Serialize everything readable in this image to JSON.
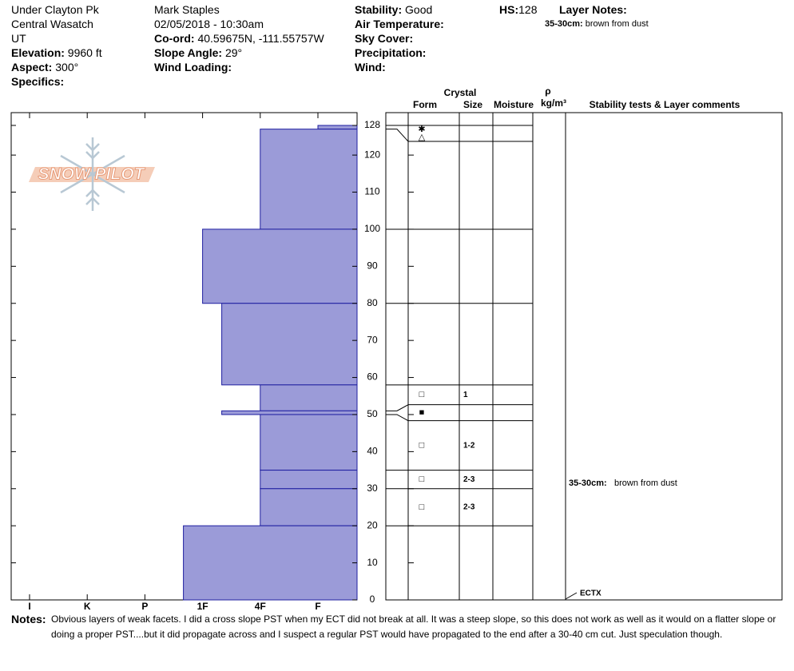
{
  "header": {
    "location": "Under Clayton Pk",
    "range": "Central Wasatch",
    "state": "UT",
    "elevation": {
      "label": "Elevation:",
      "value": "9960 ft"
    },
    "aspect": {
      "label": "Aspect:",
      "value": "300°"
    },
    "specifics": {
      "label": "Specifics:"
    },
    "observer": "Mark Staples",
    "date": "02/05/2018 - 10:30am",
    "coord": {
      "label": "Co-ord:",
      "value": "40.59675N, -111.55757W"
    },
    "slope_angle": {
      "label": "Slope Angle:",
      "value": "29°"
    },
    "wind_loading": {
      "label": "Wind Loading:"
    },
    "stability": {
      "label": "Stability:",
      "value": "Good"
    },
    "air_temperature": {
      "label": "Air Temperature:"
    },
    "sky_cover": {
      "label": "Sky Cover:"
    },
    "precipitation": {
      "label": "Precipitation:"
    },
    "wind": {
      "label": "Wind:"
    },
    "hs": {
      "label": "HS:",
      "value": 128
    },
    "layer_notes": {
      "label": "Layer Notes:",
      "items": [
        {
          "range": "35-30cm:",
          "text": "brown from dust"
        }
      ]
    }
  },
  "logo": "SNOW PILOT",
  "profile": {
    "hardness_labels": [
      "I",
      "K",
      "P",
      "1F",
      "4F",
      "F"
    ],
    "height_range": [
      0,
      128
    ],
    "height_ticks": [
      0,
      10,
      20,
      30,
      40,
      50,
      60,
      70,
      80,
      90,
      100,
      110,
      120,
      128
    ],
    "bar_color": "#9b9bd8",
    "layers": [
      {
        "top": 128,
        "bottom": 127,
        "hardness": "F",
        "form": [
          "✱",
          "△"
        ]
      },
      {
        "top": 127,
        "bottom": 100,
        "hardness": "4F"
      },
      {
        "top": 100,
        "bottom": 80,
        "hardness": "1F"
      },
      {
        "top": 80,
        "bottom": 58,
        "hardness": "1F-"
      },
      {
        "top": 58,
        "bottom": 51,
        "hardness": "4F",
        "form": [
          "□"
        ],
        "size": "1"
      },
      {
        "top": 51,
        "bottom": 50,
        "hardness": "1F-",
        "form": [
          "■"
        ]
      },
      {
        "top": 50,
        "bottom": 35,
        "hardness": "4F",
        "form": [
          "□"
        ],
        "size": "1-2"
      },
      {
        "top": 35,
        "bottom": 30,
        "hardness": "4F",
        "form": [
          "□"
        ],
        "size": "2-3"
      },
      {
        "top": 30,
        "bottom": 20,
        "hardness": "4F",
        "form": [
          "□"
        ],
        "size": "2-3"
      },
      {
        "top": 20,
        "bottom": 0,
        "hardness": "1F+"
      }
    ]
  },
  "columns": {
    "crystal": "Crystal",
    "form": "Form",
    "size": "Size",
    "moisture": "Moisture",
    "density_symbol": "ρ",
    "density_unit": "kg/m³",
    "comments": "Stability tests & Layer comments"
  },
  "tests": [
    {
      "label": "ECTX"
    }
  ],
  "notes": {
    "label": "Notes:",
    "lines": [
      "Obvious layers of weak facets.  I did a cross slope PST when my ECT did not break at all. It was a steep slope, so this does not work as well as it would on a flatter slope or",
      "doing a proper PST....but it did propagate across and I suspect a regular PST would have propagated to the end after a 30-40 cm cut. Just speculation though."
    ]
  }
}
